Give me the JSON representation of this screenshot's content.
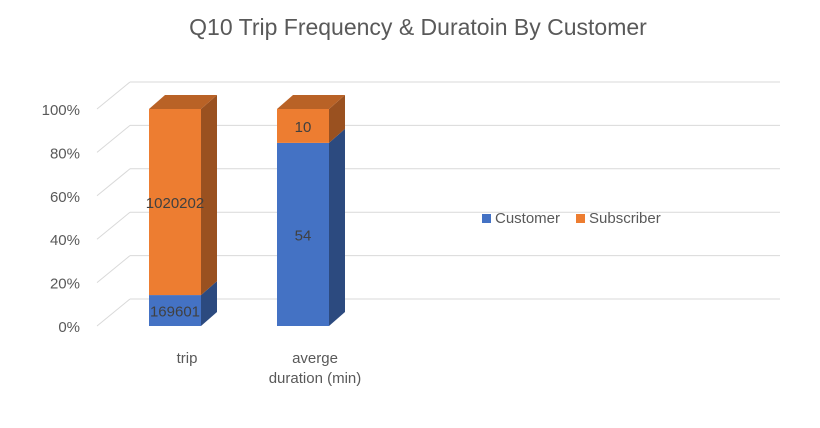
{
  "chart_data": {
    "type": "bar",
    "stacked": "percent",
    "three_d": true,
    "title": "Q10 Trip Frequency & Duratoin By Customer",
    "categories": [
      "trip",
      "averge duration (min)"
    ],
    "category_lines": [
      [
        "trip"
      ],
      [
        "averge",
        "duration (min)"
      ]
    ],
    "series": [
      {
        "name": "Customer",
        "values": [
          169601,
          54
        ],
        "labels": [
          "169601",
          "54"
        ],
        "color": "#4472C4"
      },
      {
        "name": "Subscriber",
        "values": [
          1020202,
          10
        ],
        "labels": [
          "1020202",
          "10"
        ],
        "color": "#ED7D31"
      }
    ],
    "y_ticks": [
      "0%",
      "20%",
      "40%",
      "60%",
      "80%",
      "100%"
    ],
    "ylim": [
      0,
      100
    ],
    "grid": true,
    "legend_position": "right"
  }
}
